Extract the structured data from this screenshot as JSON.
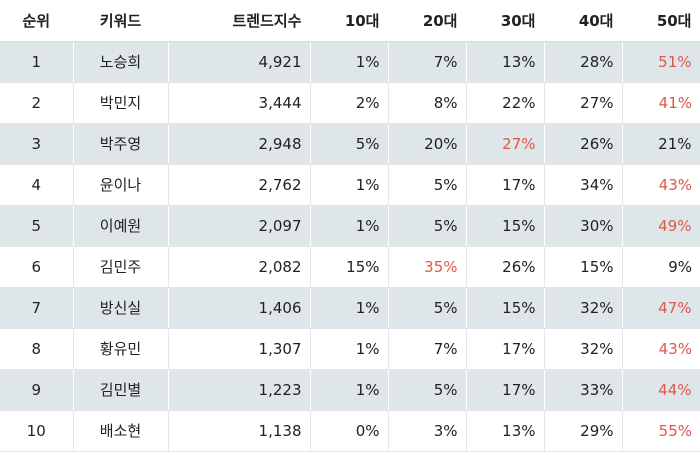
{
  "table": {
    "headers": [
      "순위",
      "키워드",
      "트렌드지수",
      "10대",
      "20대",
      "30대",
      "40대",
      "50대"
    ],
    "rows": [
      {
        "rank": "1",
        "keyword": "노승희",
        "index": "4,921",
        "a10": "1%",
        "a20": "7%",
        "a30": "13%",
        "a40": "28%",
        "a50": "51%",
        "top": "a50"
      },
      {
        "rank": "2",
        "keyword": "박민지",
        "index": "3,444",
        "a10": "2%",
        "a20": "8%",
        "a30": "22%",
        "a40": "27%",
        "a50": "41%",
        "top": "a50"
      },
      {
        "rank": "3",
        "keyword": "박주영",
        "index": "2,948",
        "a10": "5%",
        "a20": "20%",
        "a30": "27%",
        "a40": "26%",
        "a50": "21%",
        "top": "a30"
      },
      {
        "rank": "4",
        "keyword": "윤이나",
        "index": "2,762",
        "a10": "1%",
        "a20": "5%",
        "a30": "17%",
        "a40": "34%",
        "a50": "43%",
        "top": "a50"
      },
      {
        "rank": "5",
        "keyword": "이예원",
        "index": "2,097",
        "a10": "1%",
        "a20": "5%",
        "a30": "15%",
        "a40": "30%",
        "a50": "49%",
        "top": "a50"
      },
      {
        "rank": "6",
        "keyword": "김민주",
        "index": "2,082",
        "a10": "15%",
        "a20": "35%",
        "a30": "26%",
        "a40": "15%",
        "a50": "9%",
        "top": "a20"
      },
      {
        "rank": "7",
        "keyword": "방신실",
        "index": "1,406",
        "a10": "1%",
        "a20": "5%",
        "a30": "15%",
        "a40": "32%",
        "a50": "47%",
        "top": "a50"
      },
      {
        "rank": "8",
        "keyword": "황유민",
        "index": "1,307",
        "a10": "1%",
        "a20": "7%",
        "a30": "17%",
        "a40": "32%",
        "a50": "43%",
        "top": "a50"
      },
      {
        "rank": "9",
        "keyword": "김민별",
        "index": "1,223",
        "a10": "1%",
        "a20": "5%",
        "a30": "17%",
        "a40": "33%",
        "a50": "44%",
        "top": "a50"
      },
      {
        "rank": "10",
        "keyword": "배소현",
        "index": "1,138",
        "a10": "0%",
        "a20": "3%",
        "a30": "13%",
        "a40": "29%",
        "a50": "55%",
        "top": "a50"
      }
    ]
  },
  "colors": {
    "highlight": "#e0574a",
    "stripe": "#dee6ea"
  }
}
